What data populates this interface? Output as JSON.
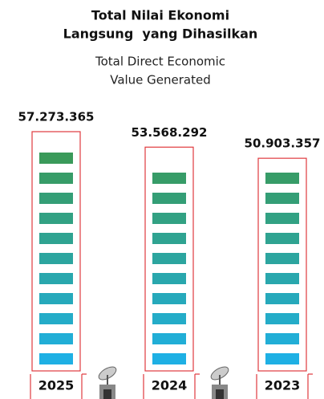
{
  "chart_data": {
    "type": "bar",
    "title": [
      "Total Nilai Ekonomi",
      "Langsung  yang Dihasilkan"
    ],
    "subtitle": [
      "Total Direct Economic",
      "Value Generated"
    ],
    "categories": [
      "2025",
      "2024",
      "2023"
    ],
    "values": [
      57273365,
      53568292,
      50903357
    ],
    "value_labels": [
      "57.273.365",
      "53.568.292",
      "50.903.357"
    ],
    "color": "#e03a3e"
  }
}
